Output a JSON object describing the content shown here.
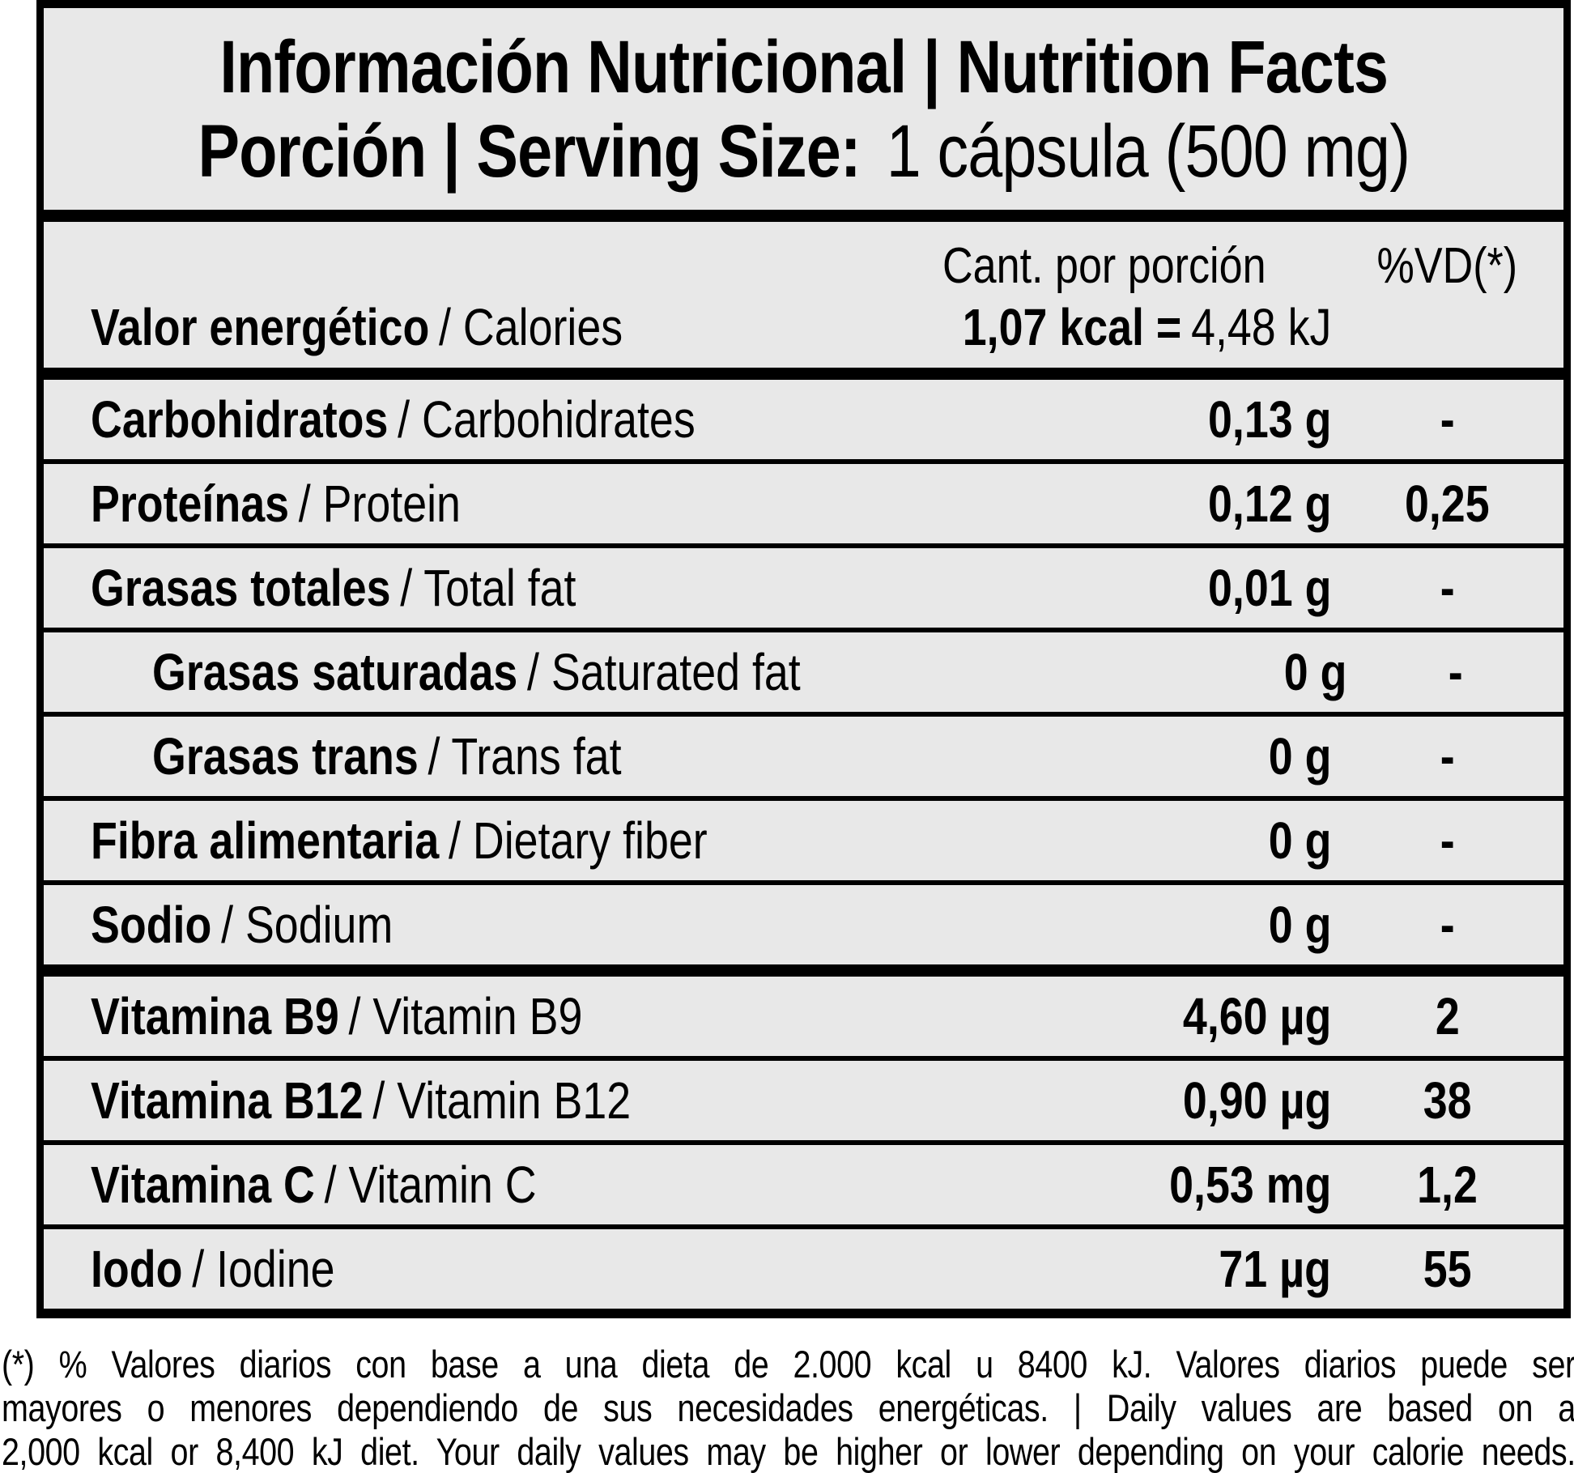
{
  "header": {
    "title": "Información Nutricional | Nutrition Facts",
    "serving_label": "Porción | Serving Size:",
    "serving_value": "1 cápsula (500 mg)"
  },
  "columns": {
    "amount_header": "Cant. por porción",
    "dv_header": "%VD(*)"
  },
  "energy": {
    "label_es": "Valor energético",
    "label_en": "/ Calories",
    "value_bold": "1,07 kcal =",
    "value_rest": "4,48 kJ"
  },
  "rows": [
    {
      "label_es": "Carbohidratos",
      "label_en": "/ Carbohidrates",
      "amount": "0,13 g",
      "dv": "-",
      "indent": false
    },
    {
      "label_es": "Proteínas",
      "label_en": "/ Protein",
      "amount": "0,12 g",
      "dv": "0,25",
      "indent": false
    },
    {
      "label_es": "Grasas totales",
      "label_en": "/ Total fat",
      "amount": "0,01 g",
      "dv": "-",
      "indent": false
    },
    {
      "label_es": "Grasas saturadas",
      "label_en": "/ Saturated fat",
      "amount": "0 g",
      "dv": "-",
      "indent": true
    },
    {
      "label_es": "Grasas trans",
      "label_en": "/ Trans fat",
      "amount": "0 g",
      "dv": "-",
      "indent": true
    },
    {
      "label_es": "Fibra alimentaria",
      "label_en": "/ Dietary fiber",
      "amount": "0 g",
      "dv": "-",
      "indent": false
    },
    {
      "label_es": "Sodio",
      "label_en": "/ Sodium",
      "amount": "0 g",
      "dv": "-",
      "indent": false
    },
    {
      "label_es": "Vitamina B9",
      "label_en": "/ Vitamin B9",
      "amount": "4,60 µg",
      "dv": "2",
      "indent": false
    },
    {
      "label_es": "Vitamina B12",
      "label_en": "/ Vitamin B12",
      "amount": "0,90 µg",
      "dv": "38",
      "indent": false
    },
    {
      "label_es": "Vitamina C",
      "label_en": "/ Vitamin C",
      "amount": "0,53 mg",
      "dv": "1,2",
      "indent": false
    },
    {
      "label_es": "Iodo",
      "label_en": "/ Iodine",
      "amount": "71 µg",
      "dv": "55",
      "indent": false
    }
  ],
  "footnote": {
    "line1": "(*) % Valores diarios con base a una dieta de 2.000 kcal u 8400 kJ. Valores diarios puede ser",
    "line2": "mayores o menores dependiendo de sus necesidades energéticas. | Daily values are based on a",
    "line3": "2,000 kcal or 8,400 kJ diet. Your daily values may be higher or lower depending on your calorie needs."
  },
  "colors": {
    "cell_bg": "#e8e8e8",
    "border": "#000000",
    "text": "#000000",
    "page_bg": "#ffffff"
  }
}
